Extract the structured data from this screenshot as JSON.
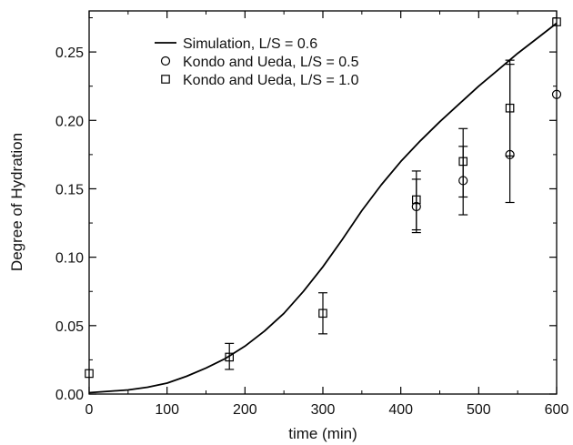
{
  "chart_data": {
    "type": "scatter",
    "title": "",
    "xlabel": "time (min)",
    "ylabel": "Degree of Hydration",
    "xlim": [
      0,
      600
    ],
    "ylim": [
      0,
      0.28
    ],
    "xticks": [
      0,
      100,
      200,
      300,
      400,
      500,
      600
    ],
    "xtick_labels": [
      "0",
      "100",
      "200",
      "300",
      "400",
      "500",
      "600"
    ],
    "yticks": [
      0,
      0.05,
      0.1,
      0.15,
      0.2,
      0.25
    ],
    "ytick_labels": [
      "0.00",
      "0.05",
      "0.10",
      "0.15",
      "0.20",
      "0.25"
    ],
    "grid": false,
    "legend_position": "top-left",
    "series": [
      {
        "name": "Simulation, L/S = 0.6",
        "kind": "line",
        "color": "#000000",
        "x": [
          0,
          25,
          50,
          75,
          100,
          125,
          150,
          175,
          200,
          225,
          250,
          275,
          300,
          325,
          350,
          375,
          400,
          425,
          450,
          475,
          500,
          525,
          550,
          575,
          600
        ],
        "y": [
          0.001,
          0.002,
          0.003,
          0.005,
          0.008,
          0.013,
          0.019,
          0.026,
          0.035,
          0.046,
          0.059,
          0.075,
          0.093,
          0.113,
          0.134,
          0.153,
          0.17,
          0.185,
          0.199,
          0.212,
          0.225,
          0.237,
          0.249,
          0.26,
          0.271
        ]
      },
      {
        "name": "Kondo and Ueda, L/S = 0.5",
        "kind": "scatter",
        "marker": "circle",
        "color": "#000000",
        "x": [
          420,
          480,
          540,
          600
        ],
        "y": [
          0.137,
          0.156,
          0.175,
          0.219
        ]
      },
      {
        "name": "Kondo and Ueda, L/S = 1.0",
        "kind": "scatter",
        "marker": "square",
        "color": "#000000",
        "x": [
          0,
          180,
          300,
          420,
          480,
          540,
          600
        ],
        "y": [
          0.015,
          0.027,
          0.059,
          0.142,
          0.17,
          0.209,
          0.272
        ]
      }
    ],
    "error_bars": [
      {
        "x": 180,
        "low": 0.018,
        "high": 0.037
      },
      {
        "x": 300,
        "low": 0.044,
        "high": 0.074
      },
      {
        "x": 420,
        "low": 0.118,
        "high": 0.163
      },
      {
        "x": 420,
        "low": 0.12,
        "high": 0.157
      },
      {
        "x": 480,
        "low": 0.131,
        "high": 0.181
      },
      {
        "x": 480,
        "low": 0.144,
        "high": 0.194
      },
      {
        "x": 540,
        "low": 0.14,
        "high": 0.244
      },
      {
        "x": 540,
        "low": 0.174,
        "high": 0.241
      }
    ]
  }
}
